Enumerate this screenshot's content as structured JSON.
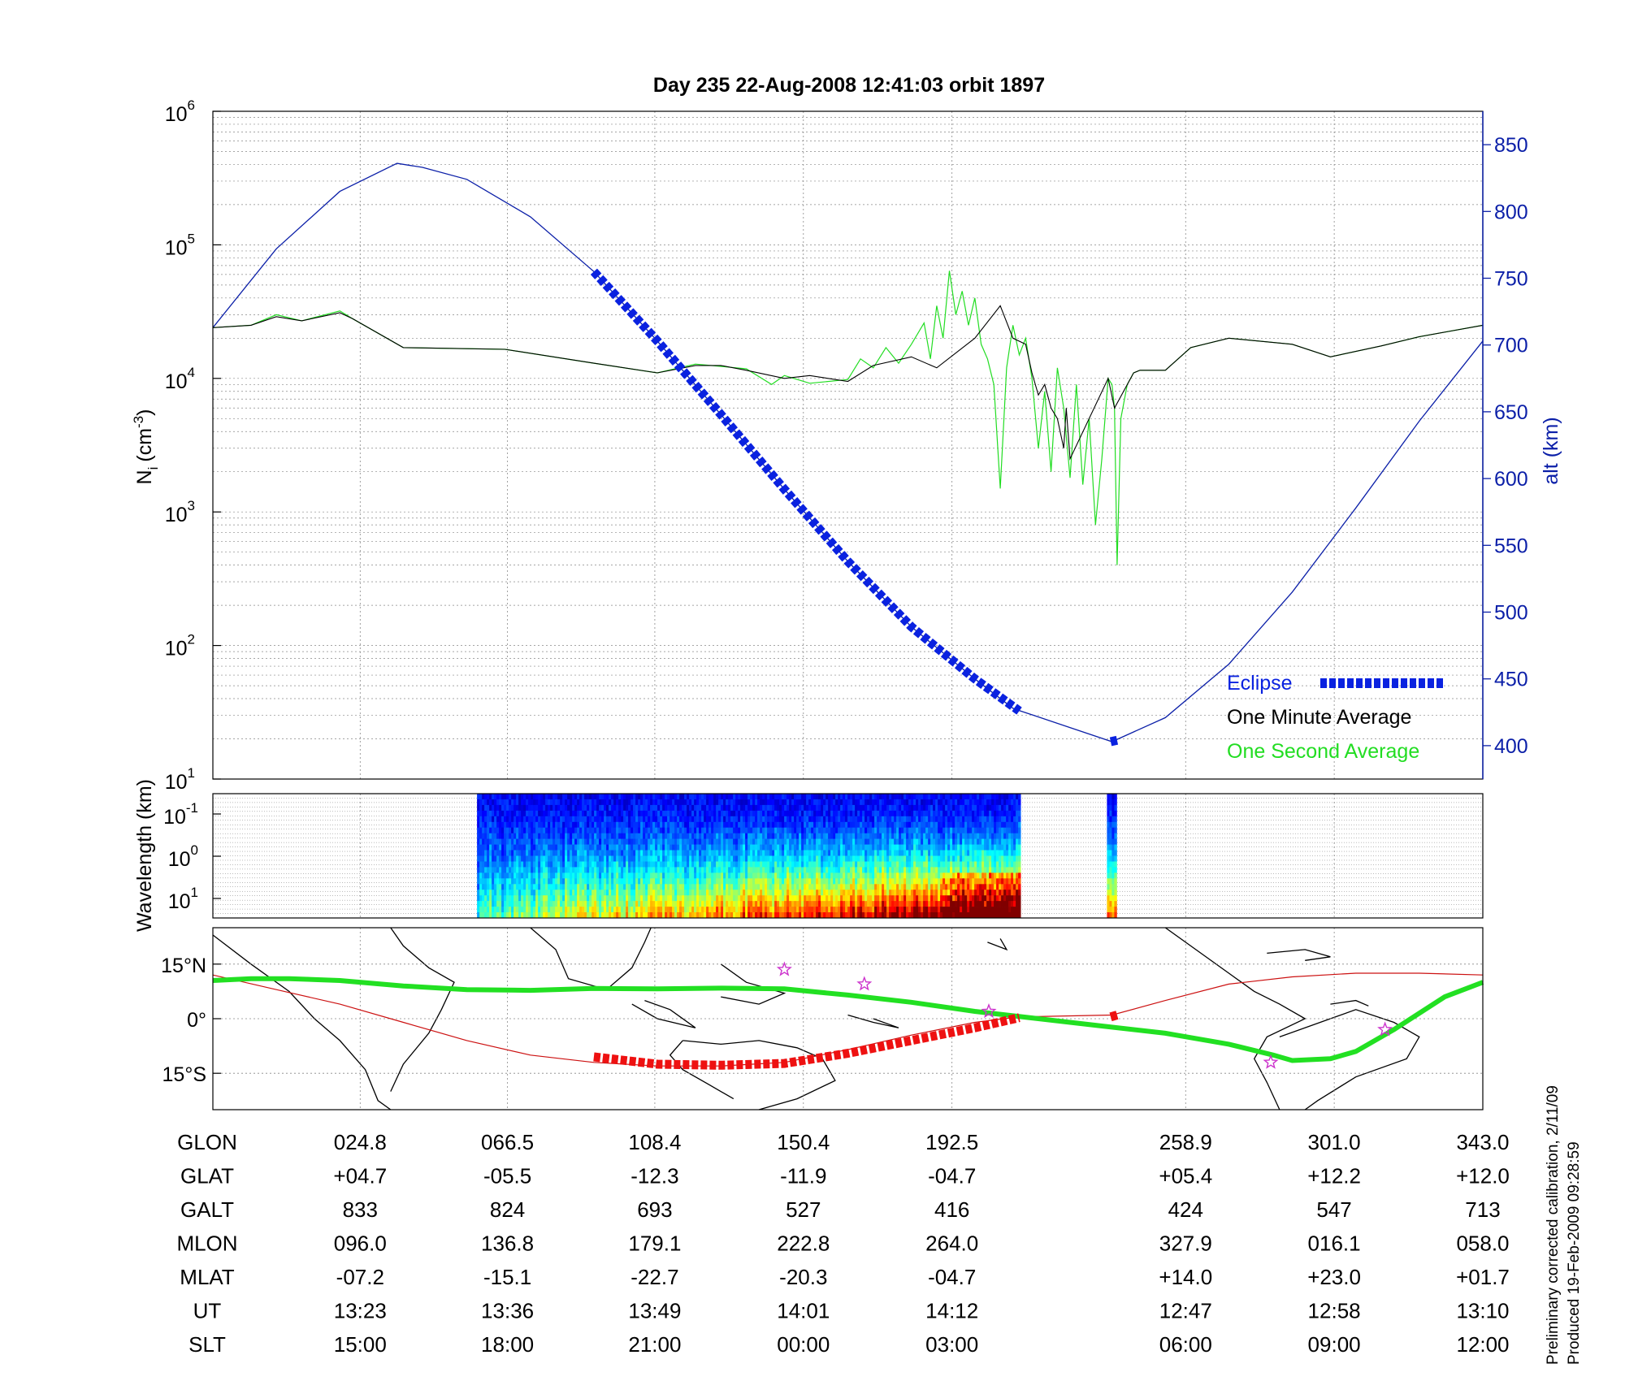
{
  "title": "Day 235  22-Aug-2008 12:41:03   orbit 1897",
  "colors": {
    "altitude": "#0b1fa8",
    "eclipse": "#0a22e0",
    "one_minute": "#000000",
    "one_second": "#22dd22",
    "ground_track": "#22e022",
    "orbit_track": "#cc1111",
    "eclipse_track": "#ee1111",
    "star": "#cc33cc"
  },
  "chart_data": [
    {
      "type": "line",
      "name": "ion-density-panel",
      "ylabel_left": "N",
      "ylabel_left_sub": "i",
      "ylabel_left_unit": "(cm",
      "ylabel_left_exp": "-3",
      "ylabel_left_close": ")",
      "ylabel_right": "alt (km)",
      "y_scale": "log",
      "ylim": [
        10,
        1000000
      ],
      "y_ticks": [
        {
          "base": "10",
          "exp": "1",
          "value": 10
        },
        {
          "base": "10",
          "exp": "2",
          "value": 100
        },
        {
          "base": "10",
          "exp": "3",
          "value": 1000
        },
        {
          "base": "10",
          "exp": "4",
          "value": 10000
        },
        {
          "base": "10",
          "exp": "5",
          "value": 100000
        },
        {
          "base": "10",
          "exp": "6",
          "value": 1000000
        }
      ],
      "y2lim": [
        375,
        875
      ],
      "y2_ticks": [
        "400",
        "450",
        "500",
        "550",
        "600",
        "650",
        "700",
        "750",
        "800",
        "850"
      ],
      "xlim": [
        0,
        1
      ],
      "grid": true,
      "legend": [
        "Eclipse",
        "One Minute Average",
        "One Second Average"
      ],
      "legend_position": "bottom-right",
      "series": {
        "altitude": [
          [
            0.0,
            713
          ],
          [
            0.05,
            772
          ],
          [
            0.1,
            815
          ],
          [
            0.145,
            836
          ],
          [
            0.165,
            833
          ],
          [
            0.2,
            824
          ],
          [
            0.25,
            796
          ],
          [
            0.3,
            755
          ],
          [
            0.35,
            703
          ],
          [
            0.4,
            648
          ],
          [
            0.45,
            592
          ],
          [
            0.5,
            538
          ],
          [
            0.55,
            489
          ],
          [
            0.6,
            450
          ],
          [
            0.63,
            428
          ],
          [
            0.636,
            426
          ],
          [
            0.708,
            403
          ],
          [
            0.75,
            421
          ],
          [
            0.8,
            461
          ],
          [
            0.85,
            515
          ],
          [
            0.9,
            578
          ],
          [
            0.95,
            643
          ],
          [
            1.0,
            703
          ]
        ],
        "eclipse_altitude": [
          [
            0.3,
            755
          ],
          [
            0.35,
            703
          ],
          [
            0.4,
            648
          ],
          [
            0.45,
            592
          ],
          [
            0.5,
            538
          ],
          [
            0.55,
            489
          ],
          [
            0.6,
            450
          ],
          [
            0.635,
            426
          ]
        ],
        "eclipse_altitude_2": [
          [
            0.707,
            403
          ],
          [
            0.712,
            404
          ]
        ],
        "one_minute_average": [
          [
            0.0,
            24000
          ],
          [
            0.03,
            25000
          ],
          [
            0.05,
            29000
          ],
          [
            0.07,
            27000
          ],
          [
            0.1,
            31000
          ],
          [
            0.11,
            28000
          ],
          [
            0.15,
            17000
          ],
          [
            0.23,
            16500
          ],
          [
            0.3,
            13000
          ],
          [
            0.35,
            11000
          ],
          [
            0.38,
            12500
          ],
          [
            0.4,
            12500
          ],
          [
            0.42,
            11500
          ],
          [
            0.45,
            10000
          ],
          [
            0.47,
            10500
          ],
          [
            0.5,
            9500
          ],
          [
            0.52,
            12500
          ],
          [
            0.55,
            14500
          ],
          [
            0.57,
            12000
          ],
          [
            0.6,
            20000
          ],
          [
            0.62,
            35000
          ],
          [
            0.63,
            20000
          ],
          [
            0.64,
            18000
          ],
          [
            0.645,
            11000
          ],
          [
            0.65,
            7500
          ],
          [
            0.655,
            9000
          ],
          [
            0.66,
            6000
          ],
          [
            0.665,
            5000
          ],
          [
            0.67,
            3000
          ],
          [
            0.672,
            6000
          ],
          [
            0.675,
            2500
          ],
          [
            0.705,
            10000
          ],
          [
            0.71,
            6000
          ],
          [
            0.725,
            11000
          ],
          [
            0.73,
            11500
          ],
          [
            0.75,
            11500
          ],
          [
            0.77,
            17000
          ],
          [
            0.8,
            20000
          ],
          [
            0.85,
            18000
          ],
          [
            0.88,
            14500
          ],
          [
            0.92,
            17500
          ],
          [
            0.95,
            20500
          ],
          [
            1.0,
            25000
          ]
        ],
        "one_second_average": [
          [
            0.0,
            24000
          ],
          [
            0.03,
            25000
          ],
          [
            0.05,
            30000
          ],
          [
            0.07,
            27000
          ],
          [
            0.1,
            32000
          ],
          [
            0.11,
            28000
          ],
          [
            0.15,
            17000
          ],
          [
            0.23,
            16500
          ],
          [
            0.3,
            13000
          ],
          [
            0.35,
            11000
          ],
          [
            0.38,
            12800
          ],
          [
            0.4,
            12300
          ],
          [
            0.42,
            11800
          ],
          [
            0.44,
            9000
          ],
          [
            0.45,
            10500
          ],
          [
            0.47,
            9200
          ],
          [
            0.5,
            9800
          ],
          [
            0.51,
            14000
          ],
          [
            0.52,
            12000
          ],
          [
            0.53,
            17000
          ],
          [
            0.54,
            13000
          ],
          [
            0.55,
            18000
          ],
          [
            0.56,
            26000
          ],
          [
            0.565,
            14000
          ],
          [
            0.57,
            35000
          ],
          [
            0.575,
            20000
          ],
          [
            0.58,
            64000
          ],
          [
            0.585,
            30000
          ],
          [
            0.59,
            45000
          ],
          [
            0.595,
            25000
          ],
          [
            0.6,
            40000
          ],
          [
            0.605,
            18000
          ],
          [
            0.61,
            14000
          ],
          [
            0.615,
            9000
          ],
          [
            0.62,
            1500
          ],
          [
            0.625,
            12000
          ],
          [
            0.63,
            25000
          ],
          [
            0.635,
            15000
          ],
          [
            0.64,
            20000
          ],
          [
            0.645,
            10000
          ],
          [
            0.65,
            3000
          ],
          [
            0.655,
            8000
          ],
          [
            0.66,
            2000
          ],
          [
            0.665,
            12000
          ],
          [
            0.67,
            6000
          ],
          [
            0.675,
            1800
          ],
          [
            0.68,
            9000
          ],
          [
            0.685,
            1600
          ],
          [
            0.69,
            5000
          ],
          [
            0.695,
            800
          ],
          [
            0.7,
            2500
          ],
          [
            0.705,
            10000
          ],
          [
            0.708,
            9000
          ],
          [
            0.71,
            6000
          ],
          [
            0.712,
            400
          ],
          [
            0.715,
            5000
          ],
          [
            0.72,
            9000
          ],
          [
            0.725,
            11000
          ],
          [
            0.73,
            11500
          ],
          [
            0.75,
            11500
          ],
          [
            0.77,
            17000
          ],
          [
            0.8,
            20000
          ],
          [
            0.85,
            18000
          ],
          [
            0.88,
            14500
          ],
          [
            0.92,
            17500
          ],
          [
            0.95,
            20500
          ],
          [
            1.0,
            25000
          ]
        ]
      }
    },
    {
      "type": "heatmap",
      "name": "wavelength-spectrogram",
      "ylabel": "Wavelength (km)",
      "y_ticks": [
        {
          "base": "10",
          "exp": "-1"
        },
        {
          "base": "10",
          "exp": "0"
        },
        {
          "base": "10",
          "exp": "1"
        }
      ],
      "data_segments": [
        [
          0.208,
          0.635
        ],
        [
          0.704,
          0.711
        ]
      ],
      "grid": true
    },
    {
      "type": "map",
      "name": "ground-track-map",
      "lat_ticks": [
        "15°N",
        "0°",
        "15°S"
      ],
      "lat_values": [
        15,
        0,
        -15
      ],
      "ylim": [
        -25,
        25
      ],
      "ground_track": [
        [
          0.0,
          10.5
        ],
        [
          0.03,
          11
        ],
        [
          0.06,
          11
        ],
        [
          0.1,
          10.5
        ],
        [
          0.15,
          9
        ],
        [
          0.2,
          8
        ],
        [
          0.25,
          7.8
        ],
        [
          0.3,
          8.3
        ],
        [
          0.35,
          8.2
        ],
        [
          0.4,
          8.4
        ],
        [
          0.45,
          8.2
        ],
        [
          0.5,
          6.5
        ],
        [
          0.55,
          4.5
        ],
        [
          0.6,
          2
        ],
        [
          0.65,
          0
        ],
        [
          0.7,
          -2
        ],
        [
          0.75,
          -4
        ],
        [
          0.8,
          -7
        ],
        [
          0.835,
          -10
        ],
        [
          0.85,
          -11.5
        ],
        [
          0.88,
          -11
        ],
        [
          0.9,
          -9
        ],
        [
          0.93,
          -3
        ],
        [
          0.97,
          6
        ],
        [
          1.0,
          10
        ]
      ],
      "orbit_track": [
        [
          0.0,
          12
        ],
        [
          0.05,
          8
        ],
        [
          0.1,
          4
        ],
        [
          0.15,
          -1
        ],
        [
          0.2,
          -6
        ],
        [
          0.25,
          -10
        ],
        [
          0.3,
          -12
        ],
        [
          0.35,
          -13
        ],
        [
          0.4,
          -13
        ],
        [
          0.45,
          -12
        ],
        [
          0.5,
          -8.5
        ],
        [
          0.55,
          -4.5
        ],
        [
          0.6,
          -1
        ],
        [
          0.635,
          0.5
        ],
        [
          0.708,
          1
        ],
        [
          0.75,
          5
        ],
        [
          0.8,
          9.5
        ],
        [
          0.85,
          11.5
        ],
        [
          0.9,
          12.5
        ],
        [
          0.95,
          12.5
        ],
        [
          1.0,
          12
        ]
      ],
      "eclipse_track": [
        [
          0.3,
          -10.5
        ],
        [
          0.35,
          -12.5
        ],
        [
          0.4,
          -12.8
        ],
        [
          0.45,
          -12.3
        ],
        [
          0.5,
          -9.5
        ],
        [
          0.55,
          -6
        ],
        [
          0.6,
          -2.5
        ],
        [
          0.635,
          0.3
        ]
      ],
      "eclipse_track_2": [
        [
          0.707,
          0.5
        ],
        [
          0.712,
          1
        ]
      ],
      "stars": [
        [
          0.45,
          13.5
        ],
        [
          0.513,
          9.5
        ],
        [
          0.611,
          2
        ],
        [
          0.833,
          -12
        ],
        [
          0.923,
          -3
        ]
      ]
    }
  ],
  "table": {
    "row_labels": [
      "GLON",
      "GLAT",
      "GALT",
      "MLON",
      "MLAT",
      "UT",
      "SLT"
    ],
    "columns": [
      {
        "frac": 0.116,
        "values": [
          "024.8",
          "+04.7",
          "833",
          "096.0",
          "-07.2",
          "13:23",
          "15:00"
        ]
      },
      {
        "frac": 0.232,
        "values": [
          "066.5",
          "-05.5",
          "824",
          "136.8",
          "-15.1",
          "13:36",
          "18:00"
        ]
      },
      {
        "frac": 0.348,
        "values": [
          "108.4",
          "-12.3",
          "693",
          "179.1",
          "-22.7",
          "13:49",
          "21:00"
        ]
      },
      {
        "frac": 0.465,
        "values": [
          "150.4",
          "-11.9",
          "527",
          "222.8",
          "-20.3",
          "14:01",
          "00:00"
        ]
      },
      {
        "frac": 0.582,
        "values": [
          "192.5",
          "-04.7",
          "416",
          "264.0",
          "-04.7",
          "14:12",
          "03:00"
        ]
      },
      {
        "frac": 0.766,
        "values": [
          "258.9",
          "+05.4",
          "424",
          "327.9",
          "+14.0",
          "12:47",
          "06:00"
        ]
      },
      {
        "frac": 0.883,
        "values": [
          "301.0",
          "+12.2",
          "547",
          "016.1",
          "+23.0",
          "12:58",
          "09:00"
        ]
      },
      {
        "frac": 1.0,
        "values": [
          "343.0",
          "+12.0",
          "713",
          "058.0",
          "+01.7",
          "13:10",
          "12:00"
        ]
      }
    ]
  },
  "footer": {
    "line1": "Preliminary corrected calibration, 2/11/09",
    "line2": "Produced 19-Feb-2009 09:28:59"
  }
}
